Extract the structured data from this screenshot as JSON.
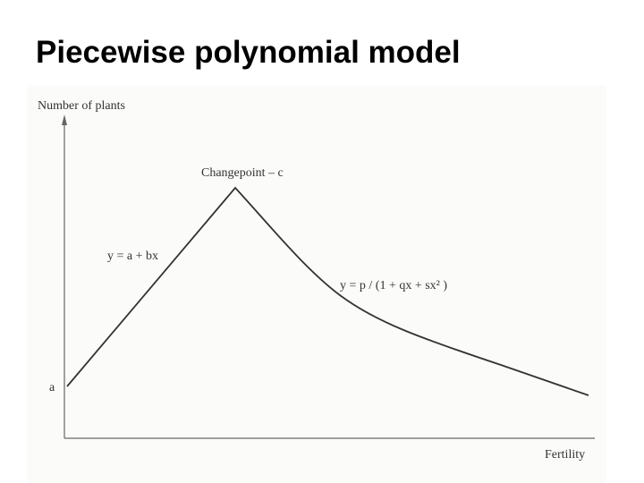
{
  "title": "Piecewise polynomial model",
  "diagram": {
    "y_axis_label": "Number of plants",
    "x_axis_label": "Fertility",
    "changepoint_label": "Changepoint – c",
    "linear_equation": "y = a + bx",
    "curve_equation": "y = p / (1 + qx + sx² )",
    "intercept_label": "a"
  }
}
